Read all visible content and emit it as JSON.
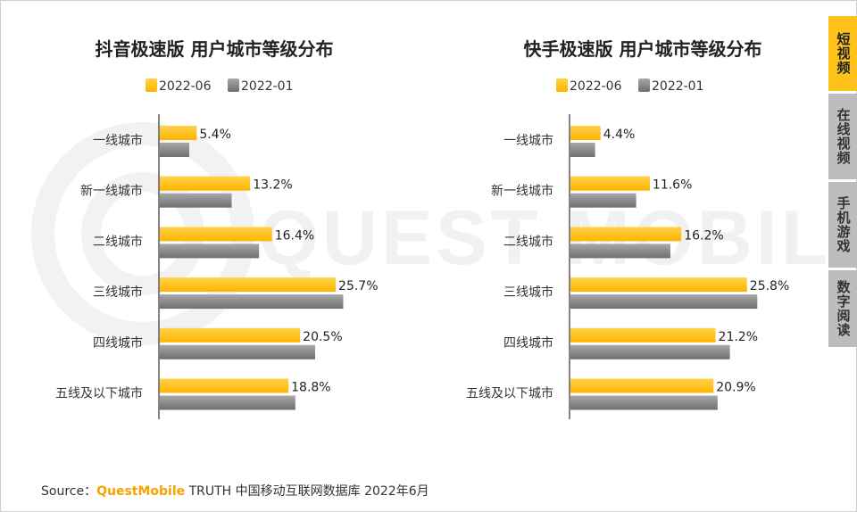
{
  "source": {
    "prefix": "Source：",
    "brand": "QuestMobile",
    "rest": " TRUTH 中国移动互联网数据库 2022年6月"
  },
  "watermark": "QUEST MOBILE",
  "side_nav": {
    "items": [
      {
        "label": "短视频",
        "active": true
      },
      {
        "label": "在线视频",
        "active": false
      },
      {
        "label": "手机游戏",
        "active": false
      },
      {
        "label": "数字阅读",
        "active": false
      }
    ]
  },
  "colors": {
    "series_2022_06": "#ffb400",
    "series_2022_01": "#8c8c8c",
    "active_tab": "#ffc21a",
    "inactive_tab": "#bdbdbd"
  },
  "chart_data": [
    {
      "type": "bar",
      "orientation": "horizontal",
      "title": "抖音极速版 用户城市等级分布",
      "categories": [
        "一线城市",
        "新一线城市",
        "二线城市",
        "三线城市",
        "四线城市",
        "五线及以下城市"
      ],
      "series": [
        {
          "name": "2022-06",
          "values": [
            5.4,
            13.2,
            16.4,
            25.7,
            20.5,
            18.8
          ],
          "labels": [
            "5.4%",
            "13.2%",
            "16.4%",
            "25.7%",
            "20.5%",
            "18.8%"
          ]
        },
        {
          "name": "2022-01",
          "values": [
            4.3,
            10.5,
            14.5,
            26.8,
            22.7,
            19.8
          ]
        }
      ],
      "xlim": [
        0,
        30
      ],
      "legend": "top",
      "grid": false
    },
    {
      "type": "bar",
      "orientation": "horizontal",
      "title": "快手极速版 用户城市等级分布",
      "categories": [
        "一线城市",
        "新一线城市",
        "二线城市",
        "三线城市",
        "四线城市",
        "五线及以下城市"
      ],
      "series": [
        {
          "name": "2022-06",
          "values": [
            4.4,
            11.6,
            16.2,
            25.8,
            21.2,
            20.9
          ],
          "labels": [
            "4.4%",
            "11.6%",
            "16.2%",
            "25.8%",
            "21.2%",
            "20.9%"
          ]
        },
        {
          "name": "2022-01",
          "values": [
            3.6,
            9.6,
            14.6,
            27.3,
            23.3,
            21.5
          ]
        }
      ],
      "xlim": [
        0,
        30
      ],
      "legend": "top",
      "grid": false
    }
  ]
}
